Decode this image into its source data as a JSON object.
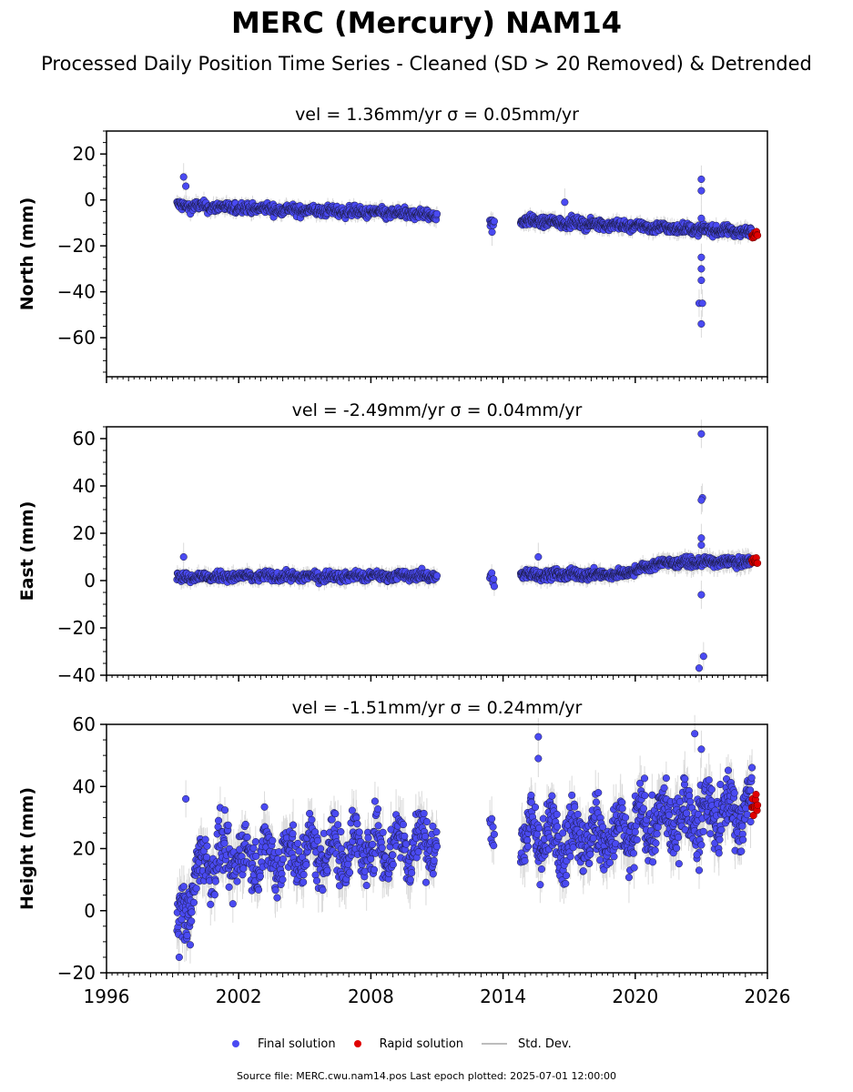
{
  "header": {
    "title": "MERC (Mercury) NAM14",
    "subtitle": "Processed Daily Position Time Series - Cleaned (SD > 20 Removed) & Detrended"
  },
  "legend": {
    "final": "Final solution",
    "rapid": "Rapid solution",
    "std": "Std. Dev."
  },
  "footer": {
    "source": "Source file: MERC.cwu.nam14.pos  Last epoch plotted: 2025-07-01 12:00:00"
  },
  "colors": {
    "final": "#4a4af2",
    "rapid": "#e00000",
    "std": "#bdbdbd"
  },
  "chart_data": [
    {
      "type": "scatter",
      "title": "vel = 1.36mm/yr   σ = 0.05mm/yr",
      "ylabel": "North (mm)",
      "xlim": [
        1996,
        2026
      ],
      "ylim": [
        -77,
        30
      ],
      "yticks": [
        20,
        0,
        -20,
        -40,
        -60
      ],
      "segments": [
        {
          "x0": 1999.2,
          "x1": 2011.0,
          "y0": -2.5,
          "y1": -6.5,
          "noise": 1.6,
          "sd": 2.5,
          "n": 620
        },
        {
          "x0": 2013.4,
          "x1": 2013.6,
          "y0": -10,
          "y1": -10,
          "noise": 1.5,
          "sd": 3,
          "n": 10
        },
        {
          "x0": 2014.8,
          "x1": 2025.3,
          "y0": -9,
          "y1": -14,
          "noise": 1.5,
          "sd": 2.5,
          "n": 680
        }
      ],
      "outliers": [
        {
          "x": 1999.5,
          "y": 10
        },
        {
          "x": 1999.6,
          "y": 6
        },
        {
          "x": 2016.8,
          "y": -1
        },
        {
          "x": 2023.0,
          "y": 9
        },
        {
          "x": 2023.0,
          "y": 4
        },
        {
          "x": 2023.0,
          "y": -8
        },
        {
          "x": 2023.0,
          "y": -25
        },
        {
          "x": 2023.0,
          "y": -30
        },
        {
          "x": 2023.0,
          "y": -35
        },
        {
          "x": 2022.9,
          "y": -45
        },
        {
          "x": 2023.05,
          "y": -45
        },
        {
          "x": 2023.0,
          "y": -54
        },
        {
          "x": 2013.5,
          "y": -14
        }
      ],
      "rapid": {
        "x0": 2025.3,
        "x1": 2025.55,
        "y": -14.5,
        "noise": 1.2,
        "n": 12
      }
    },
    {
      "type": "scatter",
      "title": "vel = -2.49mm/yr   σ = 0.04mm/yr",
      "ylabel": "East (mm)",
      "xlim": [
        1996,
        2026
      ],
      "ylim": [
        -40,
        65
      ],
      "yticks": [
        60,
        40,
        20,
        0,
        -20,
        -40
      ],
      "segments": [
        {
          "x0": 1999.2,
          "x1": 2011.0,
          "y0": 1.5,
          "y1": 2,
          "noise": 1.4,
          "sd": 2.5,
          "n": 620
        },
        {
          "x0": 2013.4,
          "x1": 2013.6,
          "y0": 1,
          "y1": 1,
          "noise": 2,
          "sd": 3,
          "n": 8
        },
        {
          "x0": 2014.8,
          "x1": 2019.3,
          "y0": 2.5,
          "y1": 2.5,
          "noise": 1.5,
          "sd": 2.5,
          "n": 300
        },
        {
          "x0": 2019.3,
          "x1": 2021.2,
          "y0": 2.5,
          "y1": 7.5,
          "noise": 1.2,
          "sd": 2.5,
          "n": 130
        },
        {
          "x0": 2021.2,
          "x1": 2025.3,
          "y0": 7.5,
          "y1": 8,
          "noise": 1.3,
          "sd": 3,
          "n": 260
        }
      ],
      "outliers": [
        {
          "x": 1999.5,
          "y": 10
        },
        {
          "x": 2015.6,
          "y": 10
        },
        {
          "x": 2023.0,
          "y": 62
        },
        {
          "x": 2023.05,
          "y": 35
        },
        {
          "x": 2023.0,
          "y": 34
        },
        {
          "x": 2023.0,
          "y": 18
        },
        {
          "x": 2023.0,
          "y": 15
        },
        {
          "x": 2023.0,
          "y": -6
        },
        {
          "x": 2023.1,
          "y": -32
        },
        {
          "x": 2022.9,
          "y": -37
        }
      ],
      "rapid": {
        "x0": 2025.3,
        "x1": 2025.55,
        "y": 8,
        "noise": 1.2,
        "n": 10
      }
    },
    {
      "type": "scatter",
      "title": "vel = -1.51mm/yr   σ = 0.24mm/yr",
      "ylabel": "Height (mm)",
      "xlim": [
        1996,
        2026
      ],
      "ylim": [
        -20,
        60
      ],
      "yticks": [
        60,
        40,
        20,
        0,
        -20
      ],
      "xticks": [
        1996,
        2002,
        2008,
        2014,
        2020,
        2026
      ],
      "segments": [
        {
          "x0": 1999.2,
          "x1": 2000.3,
          "y0": -5,
          "y1": 14,
          "noise": 6,
          "sd": 6,
          "n": 80
        },
        {
          "x0": 2000.3,
          "x1": 2011.0,
          "y0": 16,
          "y1": 22,
          "noise": 6.5,
          "sd": 6,
          "n": 560
        },
        {
          "x0": 2013.4,
          "x1": 2013.6,
          "y0": 27,
          "y1": 27,
          "noise": 3,
          "sd": 5,
          "n": 8
        },
        {
          "x0": 2014.8,
          "x1": 2020.0,
          "y0": 24,
          "y1": 24,
          "noise": 7,
          "sd": 6,
          "n": 330
        },
        {
          "x0": 2020.0,
          "x1": 2025.3,
          "y0": 28,
          "y1": 33,
          "noise": 6.5,
          "sd": 6,
          "n": 340
        }
      ],
      "outliers": [
        {
          "x": 1999.6,
          "y": 36
        },
        {
          "x": 2015.6,
          "y": 56
        },
        {
          "x": 2015.6,
          "y": 49
        },
        {
          "x": 2022.7,
          "y": 57
        },
        {
          "x": 2023.0,
          "y": 52
        },
        {
          "x": 1999.3,
          "y": -15
        },
        {
          "x": 1999.8,
          "y": -11
        },
        {
          "x": 2022.8,
          "y": 18
        },
        {
          "x": 2022.9,
          "y": 13
        }
      ],
      "rapid": {
        "x0": 2025.3,
        "x1": 2025.55,
        "y": 34,
        "noise": 3,
        "n": 12
      }
    }
  ]
}
